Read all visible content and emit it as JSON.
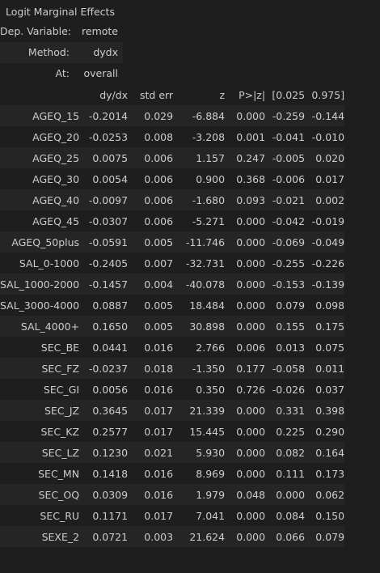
{
  "title": "Logit Marginal Effects",
  "meta": [
    {
      "key": "Dep. Variable:",
      "value": "remote"
    },
    {
      "key": "Method:",
      "value": "dydx"
    },
    {
      "key": "At:",
      "value": "overall"
    }
  ],
  "columns": [
    "",
    "dy/dx",
    "std err",
    "z",
    "P>|z|",
    "[0.025",
    "0.975]"
  ],
  "rows": [
    [
      "AGEQ_15",
      "-0.2014",
      "0.029",
      "-6.884",
      "0.000",
      "-0.259",
      "-0.144"
    ],
    [
      "AGEQ_20",
      "-0.0253",
      "0.008",
      "-3.208",
      "0.001",
      "-0.041",
      "-0.010"
    ],
    [
      "AGEQ_25",
      "0.0075",
      "0.006",
      "1.157",
      "0.247",
      "-0.005",
      "0.020"
    ],
    [
      "AGEQ_30",
      "0.0054",
      "0.006",
      "0.900",
      "0.368",
      "-0.006",
      "0.017"
    ],
    [
      "AGEQ_40",
      "-0.0097",
      "0.006",
      "-1.680",
      "0.093",
      "-0.021",
      "0.002"
    ],
    [
      "AGEQ_45",
      "-0.0307",
      "0.006",
      "-5.271",
      "0.000",
      "-0.042",
      "-0.019"
    ],
    [
      "AGEQ_50plus",
      "-0.0591",
      "0.005",
      "-11.746",
      "0.000",
      "-0.069",
      "-0.049"
    ],
    [
      "SAL_0-1000",
      "-0.2405",
      "0.007",
      "-32.731",
      "0.000",
      "-0.255",
      "-0.226"
    ],
    [
      "SAL_1000-2000",
      "-0.1457",
      "0.004",
      "-40.078",
      "0.000",
      "-0.153",
      "-0.139"
    ],
    [
      "SAL_3000-4000",
      "0.0887",
      "0.005",
      "18.484",
      "0.000",
      "0.079",
      "0.098"
    ],
    [
      "SAL_4000+",
      "0.1650",
      "0.005",
      "30.898",
      "0.000",
      "0.155",
      "0.175"
    ],
    [
      "SEC_BE",
      "0.0441",
      "0.016",
      "2.766",
      "0.006",
      "0.013",
      "0.075"
    ],
    [
      "SEC_FZ",
      "-0.0237",
      "0.018",
      "-1.350",
      "0.177",
      "-0.058",
      "0.011"
    ],
    [
      "SEC_GI",
      "0.0056",
      "0.016",
      "0.350",
      "0.726",
      "-0.026",
      "0.037"
    ],
    [
      "SEC_JZ",
      "0.3645",
      "0.017",
      "21.339",
      "0.000",
      "0.331",
      "0.398"
    ],
    [
      "SEC_KZ",
      "0.2577",
      "0.017",
      "15.445",
      "0.000",
      "0.225",
      "0.290"
    ],
    [
      "SEC_LZ",
      "0.1230",
      "0.021",
      "5.930",
      "0.000",
      "0.082",
      "0.164"
    ],
    [
      "SEC_MN",
      "0.1418",
      "0.016",
      "8.969",
      "0.000",
      "0.111",
      "0.173"
    ],
    [
      "SEC_OQ",
      "0.0309",
      "0.016",
      "1.979",
      "0.048",
      "0.000",
      "0.062"
    ],
    [
      "SEC_RU",
      "0.1171",
      "0.017",
      "7.041",
      "0.000",
      "0.084",
      "0.150"
    ],
    [
      "SEXE_2",
      "0.0721",
      "0.003",
      "21.624",
      "0.000",
      "0.066",
      "0.079"
    ]
  ]
}
